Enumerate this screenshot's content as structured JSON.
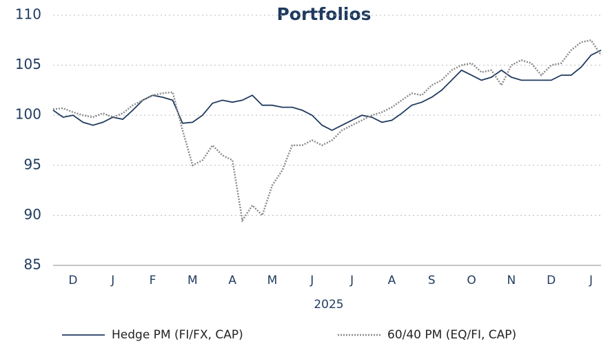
{
  "chart_data": {
    "type": "line",
    "title": "Portfolios",
    "xlabel": "2025",
    "categories": [
      null,
      null,
      "D",
      null,
      null,
      null,
      "J",
      null,
      null,
      null,
      "F",
      null,
      null,
      null,
      "M",
      null,
      null,
      null,
      "A",
      null,
      null,
      null,
      "M",
      null,
      null,
      null,
      "J",
      null,
      null,
      null,
      "J",
      null,
      null,
      null,
      "A",
      null,
      null,
      null,
      "S",
      null,
      null,
      null,
      "O",
      null,
      null,
      null,
      "N",
      null,
      null,
      null,
      "D",
      null,
      null,
      null,
      "J",
      null
    ],
    "series": [
      {
        "name": "Hedge PM (FI/FX, CAP)",
        "color": "#1f3a5f",
        "dash": "solid",
        "values": [
          100.5,
          99.8,
          100,
          99.3,
          99,
          99.3,
          99.8,
          99.6,
          100.5,
          101.5,
          102,
          101.8,
          101.5,
          99.2,
          99.3,
          100,
          101.2,
          101.5,
          101.3,
          101.5,
          102,
          101,
          101,
          100.8,
          100.8,
          100.5,
          100,
          99,
          98.5,
          99,
          99.5,
          100,
          99.8,
          99.3,
          99.5,
          100.2,
          101,
          101.3,
          101.8,
          102.5,
          103.5,
          104.5,
          104,
          103.5,
          103.8,
          104.5,
          103.8,
          103.5,
          103.5,
          103.5,
          103.5,
          104,
          104,
          104.8,
          106,
          106.5
        ]
      },
      {
        "name": "60/40 PM (EQ/FI, CAP)",
        "color": "#8a8a8a",
        "dash": "dotted",
        "values": [
          100.6,
          100.7,
          100.3,
          100,
          99.8,
          100.2,
          99.8,
          100.2,
          101,
          101.5,
          102,
          102.2,
          102.3,
          98.5,
          95,
          95.5,
          97,
          96,
          95.5,
          89.5,
          91,
          90,
          93,
          94.5,
          97,
          97,
          97.5,
          97,
          97.5,
          98.5,
          99,
          99.5,
          100,
          100.3,
          100.8,
          101.5,
          102.2,
          102,
          103,
          103.5,
          104.5,
          105,
          105.2,
          104.3,
          104.5,
          103,
          105,
          105.5,
          105.2,
          104,
          105,
          105.2,
          106.5,
          107.3,
          107.5,
          106
        ]
      }
    ],
    "ylim": [
      85,
      110
    ],
    "yticks": [
      85,
      90,
      95,
      100,
      105,
      110
    ],
    "grid": true,
    "legend": "bottom"
  }
}
